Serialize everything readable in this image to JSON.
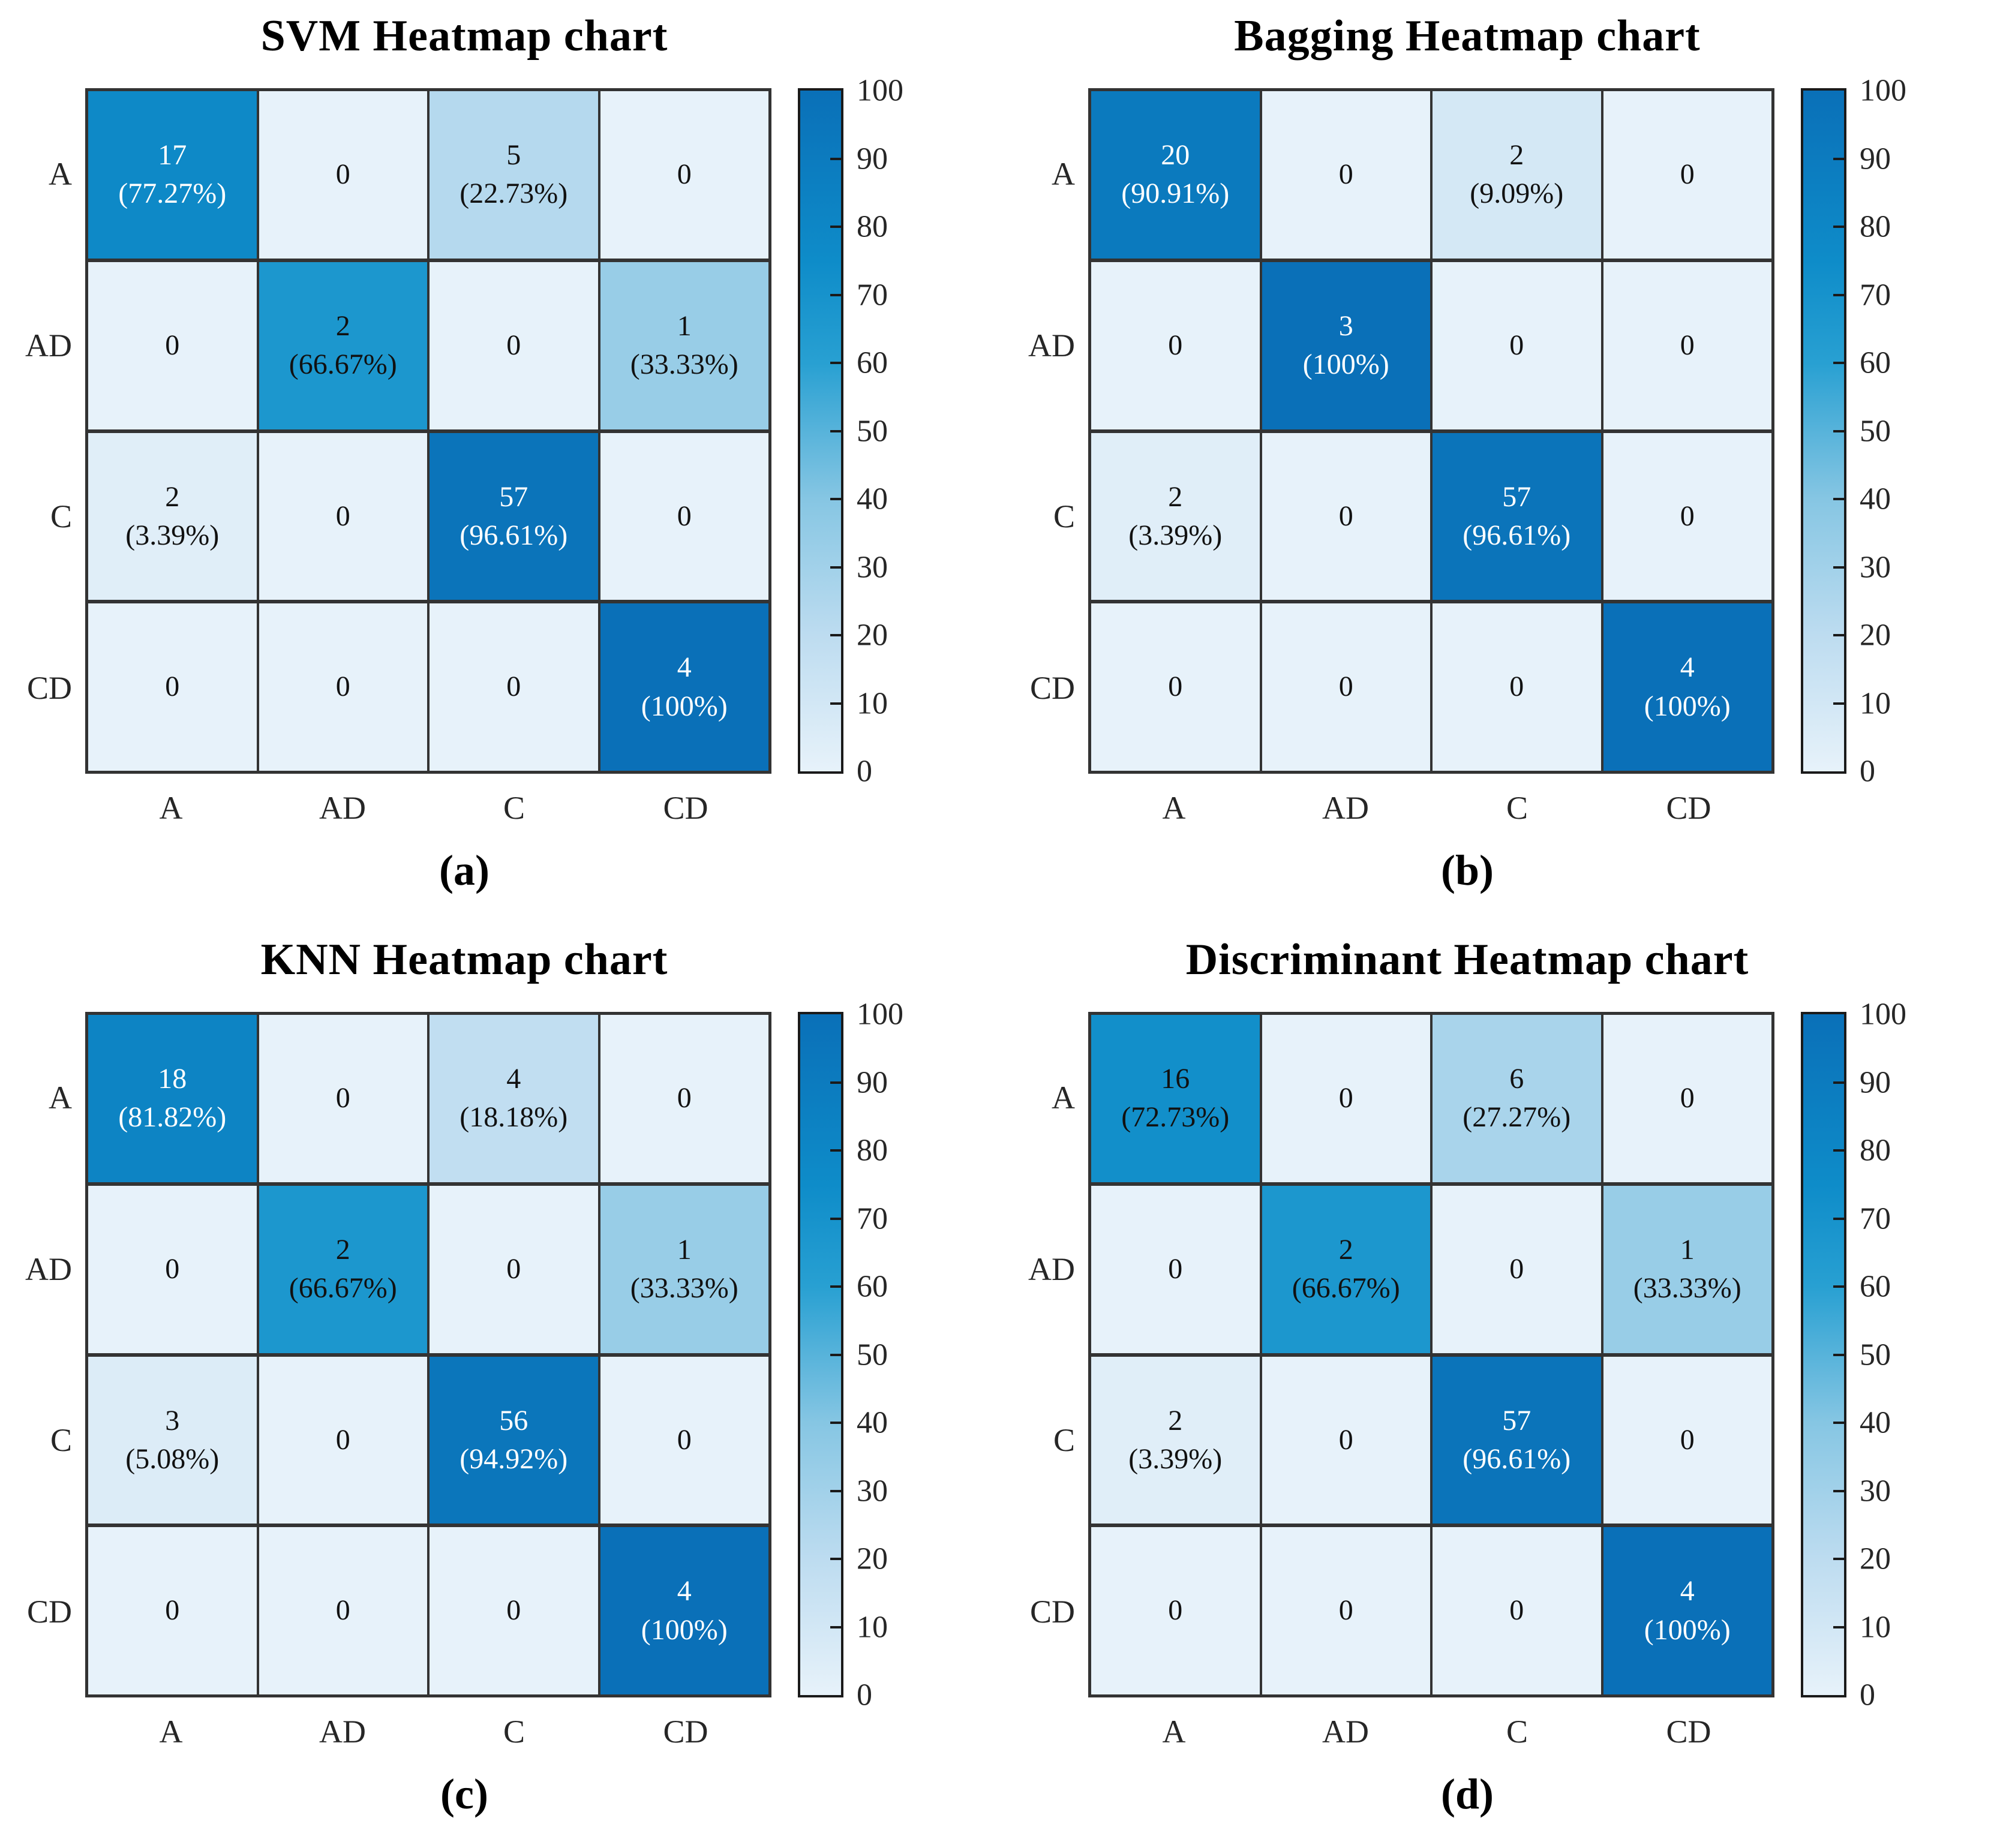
{
  "page": {
    "background": "#ffffff"
  },
  "colors": {
    "cmap_stops": [
      [
        0,
        "#e7f2fa"
      ],
      [
        20,
        "#bddcf0"
      ],
      [
        40,
        "#86c6e3"
      ],
      [
        60,
        "#28a0d2"
      ],
      [
        75,
        "#0e8cc9"
      ],
      [
        100,
        "#0a70b8"
      ]
    ],
    "grid_line": "#333333",
    "colorbar_border": "#1a1a1a",
    "cell_text_dark": "#111111",
    "cell_text_light": "#ffffff",
    "axis_text": "#262626",
    "white_text_min_pct": 75
  },
  "chart_data": [
    {
      "type": "heatmap",
      "title": "SVM Heatmap chart",
      "caption": "(a)",
      "x_categories": [
        "A",
        "AD",
        "C",
        "CD"
      ],
      "y_categories": [
        "A",
        "AD",
        "C",
        "CD"
      ],
      "colorbar": {
        "min": 0,
        "max": 100,
        "tick_values": [
          0,
          10,
          20,
          30,
          40,
          50,
          60,
          70,
          80,
          90,
          100
        ],
        "tick_labels": [
          "0",
          "10",
          "20",
          "30",
          "40",
          "50",
          "60",
          "70",
          "80",
          "90",
          "100"
        ]
      },
      "cells": [
        [
          {
            "count": "17",
            "pct": 77.27,
            "pct_label": "(77.27%)"
          },
          {
            "count": "0",
            "pct": 0
          },
          {
            "count": "5",
            "pct": 22.73,
            "pct_label": "(22.73%)"
          },
          {
            "count": "0",
            "pct": 0
          }
        ],
        [
          {
            "count": "0",
            "pct": 0
          },
          {
            "count": "2",
            "pct": 66.67,
            "pct_label": "(66.67%)"
          },
          {
            "count": "0",
            "pct": 0
          },
          {
            "count": "1",
            "pct": 33.33,
            "pct_label": "(33.33%)"
          }
        ],
        [
          {
            "count": "2",
            "pct": 3.39,
            "pct_label": "(3.39%)"
          },
          {
            "count": "0",
            "pct": 0
          },
          {
            "count": "57",
            "pct": 96.61,
            "pct_label": "(96.61%)"
          },
          {
            "count": "0",
            "pct": 0
          }
        ],
        [
          {
            "count": "0",
            "pct": 0
          },
          {
            "count": "0",
            "pct": 0
          },
          {
            "count": "0",
            "pct": 0
          },
          {
            "count": "4",
            "pct": 100,
            "pct_label": "(100%)"
          }
        ]
      ]
    },
    {
      "type": "heatmap",
      "title": "Bagging Heatmap chart",
      "caption": "(b)",
      "x_categories": [
        "A",
        "AD",
        "C",
        "CD"
      ],
      "y_categories": [
        "A",
        "AD",
        "C",
        "CD"
      ],
      "colorbar": {
        "min": 0,
        "max": 100,
        "tick_values": [
          0,
          10,
          20,
          30,
          40,
          50,
          60,
          70,
          80,
          90,
          100
        ],
        "tick_labels": [
          "0",
          "10",
          "20",
          "30",
          "40",
          "50",
          "60",
          "70",
          "80",
          "90",
          "100"
        ]
      },
      "cells": [
        [
          {
            "count": "20",
            "pct": 90.91,
            "pct_label": "(90.91%)"
          },
          {
            "count": "0",
            "pct": 0
          },
          {
            "count": "2",
            "pct": 9.09,
            "pct_label": "(9.09%)"
          },
          {
            "count": "0",
            "pct": 0
          }
        ],
        [
          {
            "count": "0",
            "pct": 0
          },
          {
            "count": "3",
            "pct": 100,
            "pct_label": "(100%)"
          },
          {
            "count": "0",
            "pct": 0
          },
          {
            "count": "0",
            "pct": 0
          }
        ],
        [
          {
            "count": "2",
            "pct": 3.39,
            "pct_label": "(3.39%)"
          },
          {
            "count": "0",
            "pct": 0
          },
          {
            "count": "57",
            "pct": 96.61,
            "pct_label": "(96.61%)"
          },
          {
            "count": "0",
            "pct": 0
          }
        ],
        [
          {
            "count": "0",
            "pct": 0
          },
          {
            "count": "0",
            "pct": 0
          },
          {
            "count": "0",
            "pct": 0
          },
          {
            "count": "4",
            "pct": 100,
            "pct_label": "(100%)"
          }
        ]
      ]
    },
    {
      "type": "heatmap",
      "title": "KNN Heatmap chart",
      "caption": "(c)",
      "x_categories": [
        "A",
        "AD",
        "C",
        "CD"
      ],
      "y_categories": [
        "A",
        "AD",
        "C",
        "CD"
      ],
      "colorbar": {
        "min": 0,
        "max": 100,
        "tick_values": [
          0,
          10,
          20,
          30,
          40,
          50,
          60,
          70,
          80,
          90,
          100
        ],
        "tick_labels": [
          "0",
          "10",
          "20",
          "30",
          "40",
          "50",
          "60",
          "70",
          "80",
          "90",
          "100"
        ]
      },
      "cells": [
        [
          {
            "count": "18",
            "pct": 81.82,
            "pct_label": "(81.82%)"
          },
          {
            "count": "0",
            "pct": 0
          },
          {
            "count": "4",
            "pct": 18.18,
            "pct_label": "(18.18%)"
          },
          {
            "count": "0",
            "pct": 0
          }
        ],
        [
          {
            "count": "0",
            "pct": 0
          },
          {
            "count": "2",
            "pct": 66.67,
            "pct_label": "(66.67%)"
          },
          {
            "count": "0",
            "pct": 0
          },
          {
            "count": "1",
            "pct": 33.33,
            "pct_label": "(33.33%)"
          }
        ],
        [
          {
            "count": "3",
            "pct": 5.08,
            "pct_label": "(5.08%)"
          },
          {
            "count": "0",
            "pct": 0
          },
          {
            "count": "56",
            "pct": 94.92,
            "pct_label": "(94.92%)"
          },
          {
            "count": "0",
            "pct": 0
          }
        ],
        [
          {
            "count": "0",
            "pct": 0
          },
          {
            "count": "0",
            "pct": 0
          },
          {
            "count": "0",
            "pct": 0
          },
          {
            "count": "4",
            "pct": 100,
            "pct_label": "(100%)"
          }
        ]
      ]
    },
    {
      "type": "heatmap",
      "title": "Discriminant Heatmap chart",
      "caption": "(d)",
      "x_categories": [
        "A",
        "AD",
        "C",
        "CD"
      ],
      "y_categories": [
        "A",
        "AD",
        "C",
        "CD"
      ],
      "colorbar": {
        "min": 0,
        "max": 100,
        "tick_values": [
          0,
          10,
          20,
          30,
          40,
          50,
          60,
          70,
          80,
          90,
          100
        ],
        "tick_labels": [
          "0",
          "10",
          "20",
          "30",
          "40",
          "50",
          "60",
          "70",
          "80",
          "90",
          "100"
        ]
      },
      "cells": [
        [
          {
            "count": "16",
            "pct": 72.73,
            "pct_label": "(72.73%)"
          },
          {
            "count": "0",
            "pct": 0
          },
          {
            "count": "6",
            "pct": 27.27,
            "pct_label": "(27.27%)"
          },
          {
            "count": "0",
            "pct": 0
          }
        ],
        [
          {
            "count": "0",
            "pct": 0
          },
          {
            "count": "2",
            "pct": 66.67,
            "pct_label": "(66.67%)"
          },
          {
            "count": "0",
            "pct": 0
          },
          {
            "count": "1",
            "pct": 33.33,
            "pct_label": "(33.33%)"
          }
        ],
        [
          {
            "count": "2",
            "pct": 3.39,
            "pct_label": "(3.39%)"
          },
          {
            "count": "0",
            "pct": 0
          },
          {
            "count": "57",
            "pct": 96.61,
            "pct_label": "(96.61%)"
          },
          {
            "count": "0",
            "pct": 0
          }
        ],
        [
          {
            "count": "0",
            "pct": 0
          },
          {
            "count": "0",
            "pct": 0
          },
          {
            "count": "0",
            "pct": 0
          },
          {
            "count": "4",
            "pct": 100,
            "pct_label": "(100%)"
          }
        ]
      ]
    }
  ]
}
